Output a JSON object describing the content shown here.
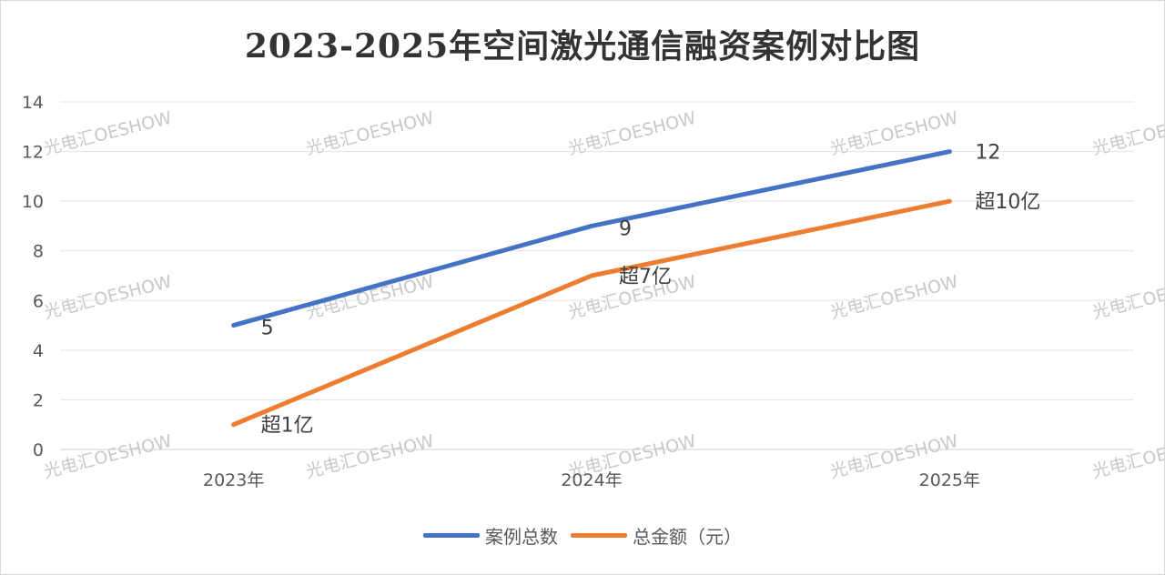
{
  "chart_data": {
    "type": "line",
    "title": "2023-2025年空间激光通信融资案例对比图",
    "categories": [
      "2023年",
      "2024年",
      "2025年"
    ],
    "ylim": [
      0,
      14
    ],
    "yticks": [
      0,
      2,
      4,
      6,
      8,
      10,
      12,
      14
    ],
    "grid": true,
    "legend_position": "bottom",
    "series": [
      {
        "name": "案例总数",
        "color": "#4472C4",
        "values": [
          5,
          9,
          12
        ],
        "data_labels": [
          "5",
          "9",
          "12"
        ]
      },
      {
        "name": "总金额（元）",
        "color": "#ED7D31",
        "values": [
          1,
          7,
          10
        ],
        "data_labels": [
          "超1亿",
          "超7亿",
          "超10亿"
        ]
      }
    ]
  },
  "watermark": {
    "text": "光电汇OESHOW"
  }
}
